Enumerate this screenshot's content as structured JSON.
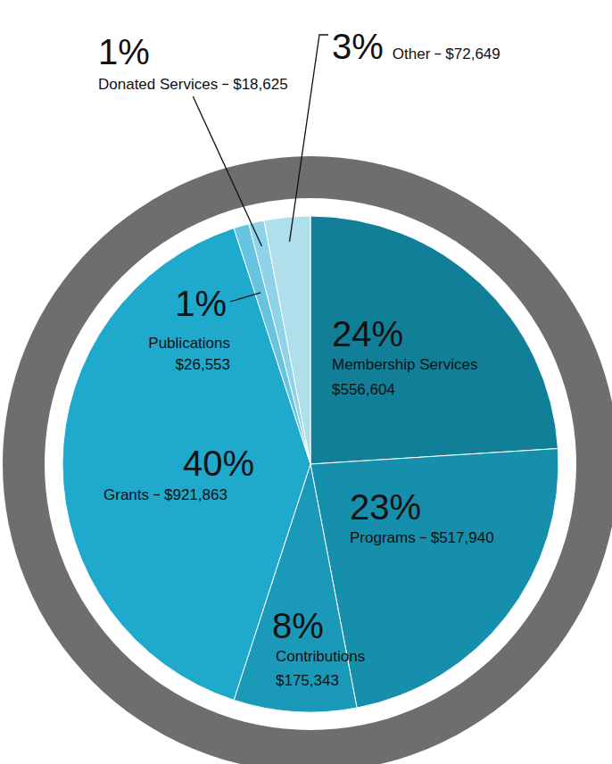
{
  "chart_data": {
    "type": "pie",
    "categories": [
      "Membership Services",
      "Programs",
      "Contributions",
      "Grants",
      "Publications",
      "Donated Services",
      "Other"
    ],
    "values": [
      24,
      23,
      8,
      40,
      1,
      1,
      3
    ],
    "value_labels": [
      "24%",
      "23%",
      "8%",
      "40%",
      "1%",
      "1%",
      "3%"
    ],
    "amount_labels": [
      "$556,604",
      "$517,940",
      "$175,343",
      "$921,863",
      "$26,553",
      "$18,625",
      "$72,649"
    ],
    "colors": [
      "#117f98",
      "#168fac",
      "#1a99b8",
      "#1fa9cc",
      "#66c4de",
      "#8fd3e8",
      "#b0dfec"
    ],
    "data_labels": true
  }
}
